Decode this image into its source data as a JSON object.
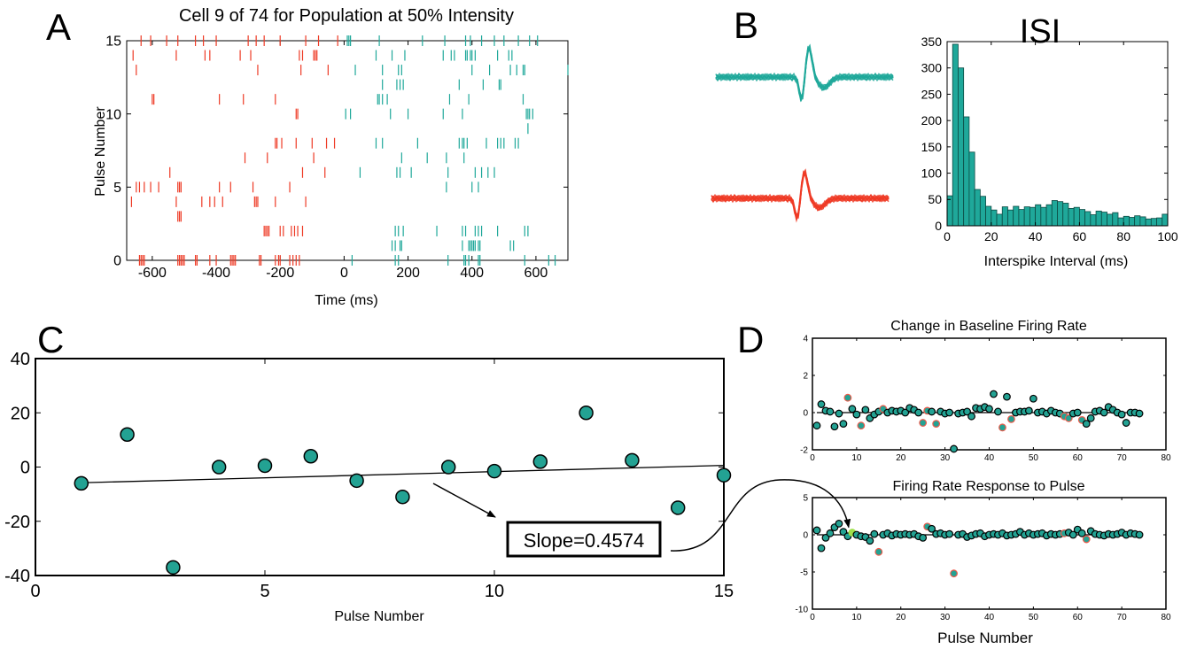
{
  "panels": {
    "a": "A",
    "b": "B",
    "c": "C",
    "d": "D"
  },
  "colors": {
    "teal": "#1fa89a",
    "red": "#ee3a25",
    "teal_marker": "#23a293",
    "red_edge": "#ee5a4a",
    "green_marker": "#9fe04a"
  },
  "chart_data": [
    {
      "id": "raster",
      "type": "scatter",
      "title": "Cell 9 of 74 for Population at 50% Intensity",
      "xlabel": "Time (ms)",
      "ylabel": "Pulse Number",
      "xlim": [
        -680,
        700
      ],
      "ylim": [
        0,
        15
      ],
      "xticks": [
        -600,
        -400,
        -200,
        0,
        200,
        400,
        600
      ],
      "xtick_labels": [
        "-600",
        "-400",
        "-200",
        "0",
        "200",
        "400",
        "600"
      ],
      "yticks": [
        0,
        5,
        10,
        15
      ],
      "ytick_labels": [
        "0",
        "5",
        "10",
        "15"
      ],
      "series": [
        {
          "color": "red",
          "spikes": [
            [
              15,
              [
                -635,
                -605,
                -555,
                -520,
                -465,
                -440,
                -400,
                -300,
                -275,
                -250,
                -200,
                -120,
                -80,
                -20
              ]
            ],
            [
              14,
              [
                -660,
                -525,
                -435,
                -420,
                -325,
                -292,
                -140,
                -130,
                -95,
                -90,
                -85
              ]
            ],
            [
              13,
              [
                -650,
                -270,
                -135,
                -50
              ]
            ],
            [
              11,
              [
                -600,
                -595,
                -390,
                -315,
                -215
              ]
            ],
            [
              10,
              [
                -150,
                -145
              ]
            ],
            [
              8,
              [
                -215,
                -210,
                -195,
                -150,
                -100,
                -55,
                -30
              ]
            ],
            [
              7,
              [
                -310,
                -240,
                -95
              ]
            ],
            [
              6,
              [
                -545,
                -130,
                -60
              ]
            ],
            [
              5,
              [
                -650,
                -640,
                -625,
                -605,
                -580,
                -520,
                -515,
                -510,
                -390,
                -355,
                -285,
                -170
              ]
            ],
            [
              4,
              [
                -665,
                -525,
                -445,
                -420,
                -405,
                -380,
                -280,
                -275,
                -270,
                -215,
                -120
              ]
            ],
            [
              3,
              [
                -520,
                -515,
                -510
              ]
            ],
            [
              2,
              [
                -250,
                -245,
                -240,
                -235,
                -200,
                -190,
                -165,
                -155,
                -145,
                -130
              ]
            ],
            [
              0,
              [
                -640,
                -635,
                -630,
                -625,
                -520,
                -515,
                -510,
                -505,
                -500,
                -465,
                -460,
                -420,
                -400,
                -355,
                -350,
                -345,
                -340,
                -265,
                -260,
                -215,
                -205,
                -200,
                -170,
                -160,
                -150,
                -140
              ]
            ]
          ]
        },
        {
          "color": "teal",
          "spikes": [
            [
              15,
              [
                10,
                15,
                20,
                110,
                245,
                315,
                380,
                395,
                430,
                470,
                500,
                545,
                580,
                605
              ]
            ],
            [
              14,
              [
                100,
                150,
                190,
                310,
                335,
                345,
                380,
                385,
                395,
                400,
                410,
                480,
                515,
                525
              ]
            ],
            [
              13,
              [
                35,
                120,
                170,
                180,
                400,
                455,
                520,
                540,
                560,
                565,
                700
              ]
            ],
            [
              12,
              [
                120,
                165,
                175,
                185,
                360,
                435,
                485,
                490
              ]
            ],
            [
              11,
              [
                105,
                110,
                120,
                135,
                330,
                390,
                560
              ]
            ],
            [
              10,
              [
                5,
                20,
                145,
                200,
                310,
                370,
                570,
                575,
                580,
                590
              ]
            ],
            [
              9,
              [
                575
              ]
            ],
            [
              8,
              [
                100,
                120,
                230,
                360,
                370,
                375,
                385,
                445,
                480,
                490,
                500,
                535,
                545
              ]
            ],
            [
              7,
              [
                180,
                260,
                320,
                375
              ]
            ],
            [
              6,
              [
                50,
                165,
                175,
                210,
                325,
                410,
                430,
                450,
                470
              ]
            ],
            [
              5,
              [
                320,
                400,
                420
              ]
            ],
            [
              2,
              [
                160,
                170,
                185,
                290,
                370,
                380,
                410,
                420,
                430,
                480,
                565,
                575
              ]
            ],
            [
              1,
              [
                150,
                160,
                175,
                180,
                370,
                390,
                395,
                400,
                405,
                410,
                420,
                425,
                520,
                530
              ]
            ],
            [
              0,
              [
                25,
                160,
                170,
                325,
                375,
                380,
                390,
                420,
                425,
                565,
                640,
                660
              ]
            ]
          ]
        }
      ]
    },
    {
      "id": "waveforms",
      "type": "line",
      "series": [
        {
          "color": "teal"
        },
        {
          "color": "red"
        }
      ]
    },
    {
      "id": "isi",
      "type": "bar",
      "title": "ISI",
      "xlabel": "Interspike Interval (ms)",
      "xlim": [
        0,
        100
      ],
      "ylim": [
        0,
        350
      ],
      "xticks": [
        0,
        20,
        40,
        60,
        80,
        100
      ],
      "xtick_labels": [
        "0",
        "20",
        "40",
        "60",
        "80",
        "100"
      ],
      "yticks": [
        0,
        50,
        100,
        150,
        200,
        250,
        300,
        350
      ],
      "ytick_labels": [
        "0",
        "50",
        "100",
        "150",
        "200",
        "250",
        "300",
        "350"
      ],
      "bin_width": 2.5,
      "values": [
        57,
        345,
        300,
        207,
        140,
        69,
        56,
        37,
        30,
        22,
        36,
        30,
        37,
        31,
        36,
        35,
        40,
        35,
        40,
        48,
        46,
        43,
        33,
        35,
        31,
        27,
        21,
        28,
        26,
        22,
        25,
        15,
        18,
        16,
        19,
        17,
        13,
        14,
        15,
        22
      ]
    },
    {
      "id": "slope",
      "type": "scatter",
      "xlabel": "Pulse Number",
      "xlim": [
        0,
        15
      ],
      "ylim": [
        -40,
        40
      ],
      "xticks": [
        0,
        5,
        10,
        15
      ],
      "xtick_labels": [
        "0",
        "5",
        "10",
        "15"
      ],
      "yticks": [
        -40,
        -20,
        0,
        20,
        40
      ],
      "ytick_labels": [
        "-40",
        "-20",
        "0",
        "20",
        "40"
      ],
      "x": [
        1,
        2,
        3,
        4,
        5,
        6,
        7,
        8,
        9,
        10,
        11,
        12,
        13,
        14,
        15
      ],
      "y": [
        -6,
        12,
        -37,
        0,
        0.5,
        4,
        -5,
        -11,
        0,
        -1.5,
        2,
        20,
        2.5,
        -15,
        -3
      ],
      "fit": {
        "x": [
          1,
          15
        ],
        "y": [
          -5.8,
          0.6
        ]
      },
      "annotation": "Slope=0.4574"
    },
    {
      "id": "baseline",
      "type": "scatter",
      "title": "Change in Baseline Firing Rate",
      "xlim": [
        0,
        80
      ],
      "ylim": [
        -2,
        4
      ],
      "xticks": [
        0,
        10,
        20,
        30,
        40,
        50,
        60,
        70,
        80
      ],
      "xtick_labels": [
        "0",
        "10",
        "20",
        "30",
        "40",
        "50",
        "60",
        "70",
        "80"
      ],
      "yticks": [
        -2,
        0,
        2,
        4
      ],
      "ytick_labels": [
        "-2",
        "0",
        "2",
        "4"
      ],
      "x": [
        1,
        2,
        3,
        4,
        5,
        6,
        7,
        8,
        9,
        10,
        11,
        12,
        13,
        14,
        15,
        16,
        17,
        18,
        19,
        20,
        21,
        22,
        23,
        24,
        25,
        26,
        27,
        28,
        29,
        30,
        31,
        32,
        33,
        34,
        35,
        36,
        37,
        38,
        39,
        40,
        41,
        42,
        43,
        44,
        45,
        46,
        47,
        48,
        49,
        50,
        51,
        52,
        53,
        54,
        55,
        56,
        57,
        58,
        59,
        60,
        61,
        62,
        63,
        64,
        65,
        66,
        67,
        68,
        69,
        70,
        71,
        72,
        73,
        74
      ],
      "y": [
        -0.7,
        0.45,
        0.1,
        0.05,
        -0.75,
        -0.05,
        -0.6,
        0.8,
        0.2,
        -0.1,
        -0.7,
        0.15,
        -0.3,
        -0.1,
        0.05,
        0.2,
        0.0,
        0.1,
        0.05,
        0.1,
        0.0,
        0.25,
        0.15,
        0.0,
        -0.55,
        0.1,
        0.05,
        -0.6,
        0.05,
        -0.05,
        0.0,
        -1.95,
        -0.05,
        0.0,
        0.05,
        -0.2,
        0.25,
        0.2,
        0.3,
        0.2,
        1.0,
        0.05,
        -0.8,
        0.85,
        -0.35,
        0.0,
        0.05,
        0.05,
        0.1,
        0.75,
        0.0,
        0.05,
        -0.05,
        0.1,
        0.0,
        -0.05,
        -0.2,
        -0.3,
        -0.05,
        0.0,
        -0.4,
        -0.6,
        -0.3,
        0.05,
        0.1,
        0.0,
        0.3,
        0.15,
        0.0,
        -0.1,
        -0.55,
        0.0,
        0.0,
        -0.05
      ],
      "red": [
        0,
        0,
        0,
        0,
        0,
        0,
        0,
        1,
        0,
        0,
        1,
        0,
        0,
        0,
        0,
        1,
        0,
        0,
        0,
        0,
        0,
        0,
        0,
        0,
        1,
        1,
        0,
        1,
        0,
        0,
        0,
        0,
        0,
        0,
        0,
        0,
        0,
        0,
        0,
        0,
        0,
        0,
        1,
        0,
        1,
        0,
        0,
        0,
        0,
        0,
        0,
        0,
        0,
        0,
        0,
        0,
        1,
        1,
        0,
        0,
        1,
        0,
        0,
        0,
        0,
        0,
        0,
        0,
        0,
        0,
        0,
        0,
        0,
        0
      ]
    },
    {
      "id": "response",
      "type": "scatter",
      "title": "Firing Rate Response to Pulse",
      "xlabel": "Pulse Number",
      "xlim": [
        0,
        80
      ],
      "ylim": [
        -10,
        5
      ],
      "xticks": [
        0,
        10,
        20,
        30,
        40,
        50,
        60,
        70,
        80
      ],
      "xtick_labels": [
        "0",
        "10",
        "20",
        "30",
        "40",
        "50",
        "60",
        "70",
        "80"
      ],
      "yticks": [
        -10,
        -5,
        0,
        5
      ],
      "ytick_labels": [
        "-10",
        "-5",
        "0",
        "5"
      ],
      "x": [
        1,
        2,
        3,
        4,
        5,
        6,
        7,
        8,
        9,
        10,
        11,
        12,
        13,
        14,
        15,
        16,
        17,
        18,
        19,
        20,
        21,
        22,
        23,
        24,
        25,
        26,
        27,
        28,
        29,
        30,
        31,
        32,
        33,
        34,
        35,
        36,
        37,
        38,
        39,
        40,
        41,
        42,
        43,
        44,
        45,
        46,
        47,
        48,
        49,
        50,
        51,
        52,
        53,
        54,
        55,
        56,
        57,
        58,
        59,
        60,
        61,
        62,
        63,
        64,
        65,
        66,
        67,
        68,
        69,
        70,
        71,
        72,
        73,
        74
      ],
      "y": [
        0.6,
        -1.8,
        -0.4,
        0.2,
        1.0,
        1.5,
        0.4,
        -0.2,
        0.3,
        0.0,
        -0.2,
        -0.3,
        -0.8,
        0.1,
        -2.3,
        0.0,
        0.2,
        -0.1,
        0.1,
        0.0,
        0.1,
        0.0,
        0.1,
        -0.2,
        -0.4,
        1.1,
        0.8,
        0.1,
        0.2,
        0.0,
        0.1,
        -5.2,
        0.0,
        0.1,
        -0.3,
        -0.1,
        0.1,
        0.2,
        -0.2,
        0.0,
        0.1,
        0.0,
        0.2,
        -0.1,
        0.0,
        0.1,
        0.4,
        0.0,
        0.2,
        0.0,
        0.1,
        0.2,
        -0.1,
        0.1,
        0.0,
        0.1,
        0.2,
        0.3,
        0.0,
        0.7,
        0.2,
        -0.6,
        0.5,
        0.1,
        0.0,
        -0.1,
        0.1,
        0.0,
        0.1,
        0.3,
        0.0,
        0.2,
        0.1,
        0.0
      ],
      "red": [
        0,
        0,
        0,
        0,
        0,
        0,
        0,
        0,
        0,
        0,
        0,
        0,
        0,
        0,
        1,
        0,
        0,
        0,
        0,
        0,
        0,
        0,
        0,
        0,
        0,
        1,
        0,
        0,
        0,
        0,
        0,
        1,
        0,
        0,
        0,
        0,
        0,
        0,
        0,
        0,
        0,
        0,
        0,
        0,
        0,
        0,
        0,
        0,
        0,
        0,
        0,
        0,
        0,
        0,
        0,
        0,
        1,
        0,
        0,
        0,
        0,
        1,
        0,
        0,
        0,
        0,
        0,
        0,
        0,
        0,
        0,
        0,
        0,
        0
      ],
      "highlight_index": 8
    }
  ]
}
